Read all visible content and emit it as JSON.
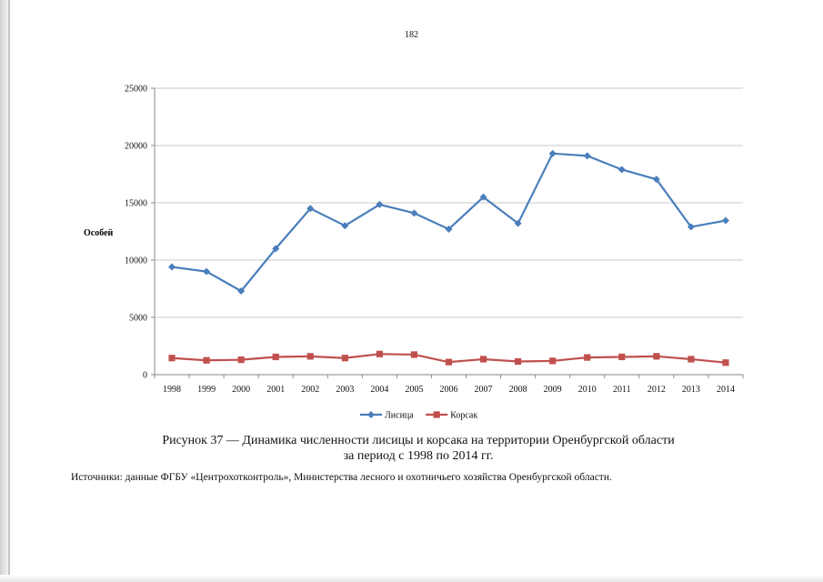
{
  "page": {
    "number": "182"
  },
  "chart_data": {
    "type": "line",
    "title": "",
    "ylabel": "Особей",
    "xlabel": "",
    "categories": [
      "1998",
      "1999",
      "2000",
      "2001",
      "2002",
      "2003",
      "2004",
      "2005",
      "2006",
      "2007",
      "2008",
      "2009",
      "2010",
      "2011",
      "2012",
      "2013",
      "2014"
    ],
    "ylim": [
      0,
      25000
    ],
    "yticks": [
      0,
      5000,
      10000,
      15000,
      20000,
      25000
    ],
    "grid": true,
    "legend_position": "bottom",
    "series": [
      {
        "name": "Лисица",
        "color": "#4a7ebb",
        "marker": "diamond",
        "values": [
          9400,
          9000,
          7300,
          11000,
          14500,
          13000,
          14850,
          14100,
          12700,
          15500,
          13200,
          19300,
          19100,
          17900,
          17050,
          12900,
          13450
        ]
      },
      {
        "name": "Корсак",
        "color": "#c0504d",
        "marker": "square",
        "values": [
          1450,
          1250,
          1300,
          1550,
          1600,
          1450,
          1800,
          1750,
          1100,
          1350,
          1150,
          1200,
          1500,
          1550,
          1600,
          1350,
          1050
        ]
      }
    ]
  },
  "caption": {
    "line1": "Рисунок 37 — Динамика численности лисицы и корсака на территории Оренбургской области",
    "line2": "за период с 1998 по 2014 гг."
  },
  "source": "Источники: данные ФГБУ «Центрохотконтроль», Министерства лесного и охотничьего хозяйства Оренбургской области."
}
